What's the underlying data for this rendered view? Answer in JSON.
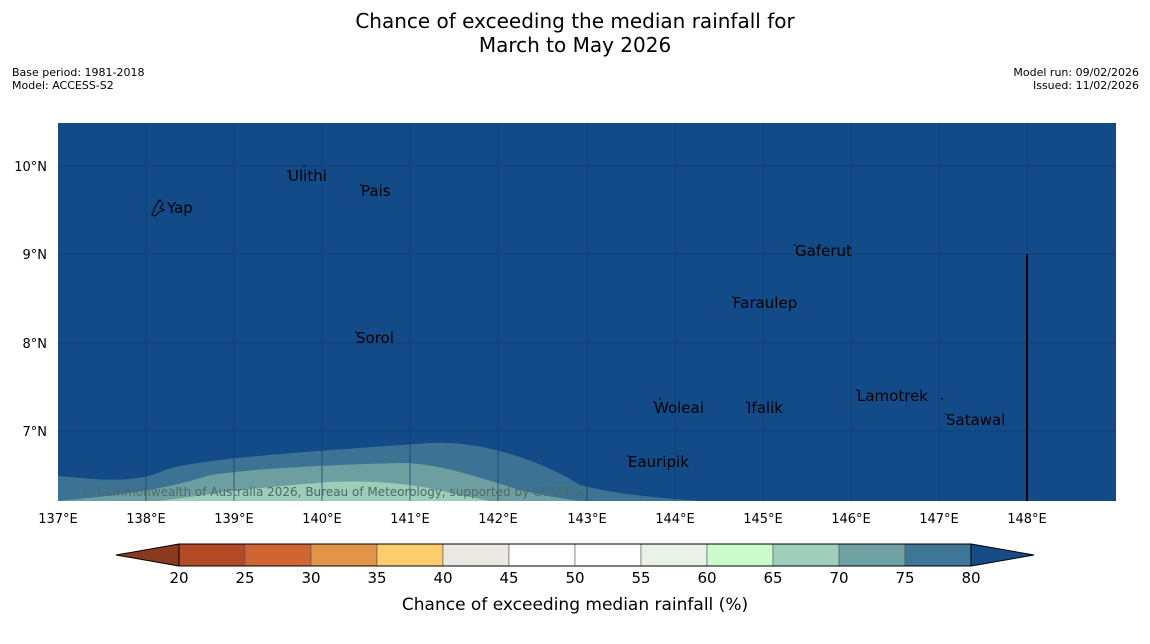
{
  "title": {
    "line1": "Chance of exceeding the median rainfall for",
    "line2": "March to May 2026"
  },
  "meta": {
    "base_period": "Base period: 1981-2018",
    "model": "Model: ACCESS-S2",
    "model_run": "Model run: 09/02/2026",
    "issued": "Issued: 11/02/2026"
  },
  "map": {
    "copyright": "© Commonwealth of Australia 2026, Bureau of Meteorology, supported by COSPPac",
    "lon_labels": [
      "137°E",
      "138°E",
      "139°E",
      "140°E",
      "141°E",
      "142°E",
      "143°E",
      "144°E",
      "145°E",
      "146°E",
      "147°E",
      "148°E"
    ],
    "lat_labels": [
      "10°N",
      "9°N",
      "8°N",
      "7°N"
    ],
    "places": [
      {
        "name": "Yap"
      },
      {
        "name": "Ulithi"
      },
      {
        "name": "Pais"
      },
      {
        "name": "Gaferut"
      },
      {
        "name": "Faraulep"
      },
      {
        "name": "Sorol"
      },
      {
        "name": "Lamotrek"
      },
      {
        "name": "Woleai"
      },
      {
        "name": "Ifalik"
      },
      {
        "name": "Satawal"
      },
      {
        "name": "Eauripik"
      }
    ]
  },
  "colorbar": {
    "label": "Chance of exceeding median rainfall (%)",
    "ticks": [
      "20",
      "25",
      "30",
      "35",
      "40",
      "45",
      "50",
      "55",
      "60",
      "65",
      "70",
      "75",
      "80"
    ],
    "bin_colors": [
      "#b34a26",
      "#d06432",
      "#e29548",
      "#fccd6c",
      "#ece9e4",
      "#ffffff",
      "#ffffff",
      "#eaf2e8",
      "#ccfccc",
      "#9ecfba",
      "#6ea1a2",
      "#3f7597"
    ],
    "under_color": "#8b3a22",
    "over_color": "#154c87"
  },
  "colors": {
    "ocean": "#134b88",
    "band75": "#3c7394",
    "band70": "#6e9fa0",
    "band65": "#9ccdb8"
  }
}
